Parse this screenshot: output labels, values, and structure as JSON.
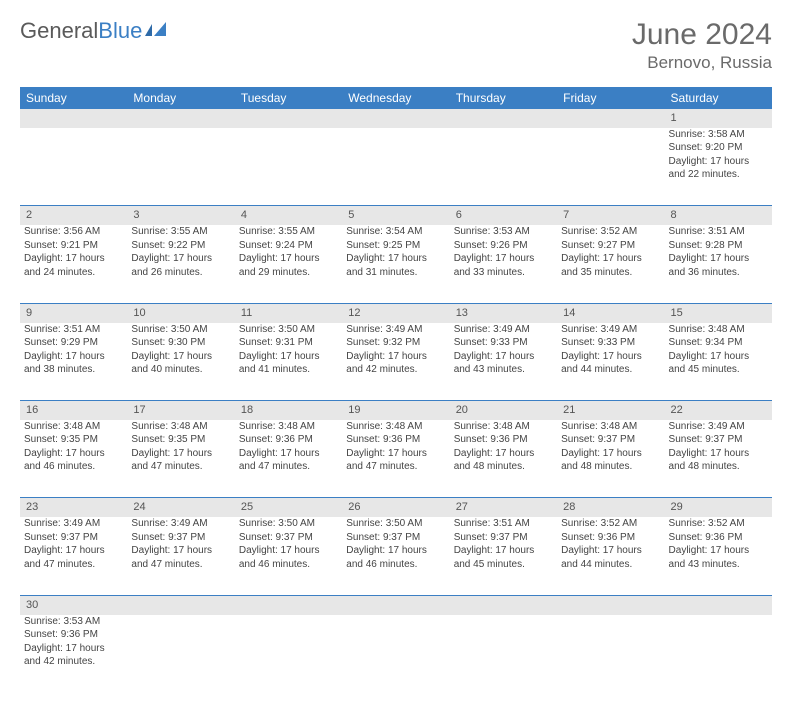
{
  "brand": {
    "part1": "General",
    "part2": "Blue"
  },
  "title": "June 2024",
  "location": "Bernovo, Russia",
  "columns": [
    "Sunday",
    "Monday",
    "Tuesday",
    "Wednesday",
    "Thursday",
    "Friday",
    "Saturday"
  ],
  "colors": {
    "header_bg": "#3b7fc4",
    "header_fg": "#ffffff",
    "daynum_bg": "#e7e7e7",
    "rule": "#3b7fc4",
    "text": "#444444",
    "title": "#6a6a6a"
  },
  "table_font_size_pt": 8,
  "header_font_size_pt": 9,
  "title_font_size_pt": 22,
  "first_weekday_index": 6,
  "num_days": 30,
  "days": {
    "1": {
      "sunrise": "3:58 AM",
      "sunset": "9:20 PM",
      "daylight_h": 17,
      "daylight_m": 22
    },
    "2": {
      "sunrise": "3:56 AM",
      "sunset": "9:21 PM",
      "daylight_h": 17,
      "daylight_m": 24
    },
    "3": {
      "sunrise": "3:55 AM",
      "sunset": "9:22 PM",
      "daylight_h": 17,
      "daylight_m": 26
    },
    "4": {
      "sunrise": "3:55 AM",
      "sunset": "9:24 PM",
      "daylight_h": 17,
      "daylight_m": 29
    },
    "5": {
      "sunrise": "3:54 AM",
      "sunset": "9:25 PM",
      "daylight_h": 17,
      "daylight_m": 31
    },
    "6": {
      "sunrise": "3:53 AM",
      "sunset": "9:26 PM",
      "daylight_h": 17,
      "daylight_m": 33
    },
    "7": {
      "sunrise": "3:52 AM",
      "sunset": "9:27 PM",
      "daylight_h": 17,
      "daylight_m": 35
    },
    "8": {
      "sunrise": "3:51 AM",
      "sunset": "9:28 PM",
      "daylight_h": 17,
      "daylight_m": 36
    },
    "9": {
      "sunrise": "3:51 AM",
      "sunset": "9:29 PM",
      "daylight_h": 17,
      "daylight_m": 38
    },
    "10": {
      "sunrise": "3:50 AM",
      "sunset": "9:30 PM",
      "daylight_h": 17,
      "daylight_m": 40
    },
    "11": {
      "sunrise": "3:50 AM",
      "sunset": "9:31 PM",
      "daylight_h": 17,
      "daylight_m": 41
    },
    "12": {
      "sunrise": "3:49 AM",
      "sunset": "9:32 PM",
      "daylight_h": 17,
      "daylight_m": 42
    },
    "13": {
      "sunrise": "3:49 AM",
      "sunset": "9:33 PM",
      "daylight_h": 17,
      "daylight_m": 43
    },
    "14": {
      "sunrise": "3:49 AM",
      "sunset": "9:33 PM",
      "daylight_h": 17,
      "daylight_m": 44
    },
    "15": {
      "sunrise": "3:48 AM",
      "sunset": "9:34 PM",
      "daylight_h": 17,
      "daylight_m": 45
    },
    "16": {
      "sunrise": "3:48 AM",
      "sunset": "9:35 PM",
      "daylight_h": 17,
      "daylight_m": 46
    },
    "17": {
      "sunrise": "3:48 AM",
      "sunset": "9:35 PM",
      "daylight_h": 17,
      "daylight_m": 47
    },
    "18": {
      "sunrise": "3:48 AM",
      "sunset": "9:36 PM",
      "daylight_h": 17,
      "daylight_m": 47
    },
    "19": {
      "sunrise": "3:48 AM",
      "sunset": "9:36 PM",
      "daylight_h": 17,
      "daylight_m": 47
    },
    "20": {
      "sunrise": "3:48 AM",
      "sunset": "9:36 PM",
      "daylight_h": 17,
      "daylight_m": 48
    },
    "21": {
      "sunrise": "3:48 AM",
      "sunset": "9:37 PM",
      "daylight_h": 17,
      "daylight_m": 48
    },
    "22": {
      "sunrise": "3:49 AM",
      "sunset": "9:37 PM",
      "daylight_h": 17,
      "daylight_m": 48
    },
    "23": {
      "sunrise": "3:49 AM",
      "sunset": "9:37 PM",
      "daylight_h": 17,
      "daylight_m": 47
    },
    "24": {
      "sunrise": "3:49 AM",
      "sunset": "9:37 PM",
      "daylight_h": 17,
      "daylight_m": 47
    },
    "25": {
      "sunrise": "3:50 AM",
      "sunset": "9:37 PM",
      "daylight_h": 17,
      "daylight_m": 46
    },
    "26": {
      "sunrise": "3:50 AM",
      "sunset": "9:37 PM",
      "daylight_h": 17,
      "daylight_m": 46
    },
    "27": {
      "sunrise": "3:51 AM",
      "sunset": "9:37 PM",
      "daylight_h": 17,
      "daylight_m": 45
    },
    "28": {
      "sunrise": "3:52 AM",
      "sunset": "9:36 PM",
      "daylight_h": 17,
      "daylight_m": 44
    },
    "29": {
      "sunrise": "3:52 AM",
      "sunset": "9:36 PM",
      "daylight_h": 17,
      "daylight_m": 43
    },
    "30": {
      "sunrise": "3:53 AM",
      "sunset": "9:36 PM",
      "daylight_h": 17,
      "daylight_m": 42
    }
  },
  "labels": {
    "sunrise": "Sunrise:",
    "sunset": "Sunset:",
    "daylight_prefix": "Daylight:",
    "hours_word": "hours",
    "and_word": "and",
    "minutes_word": "minutes."
  }
}
